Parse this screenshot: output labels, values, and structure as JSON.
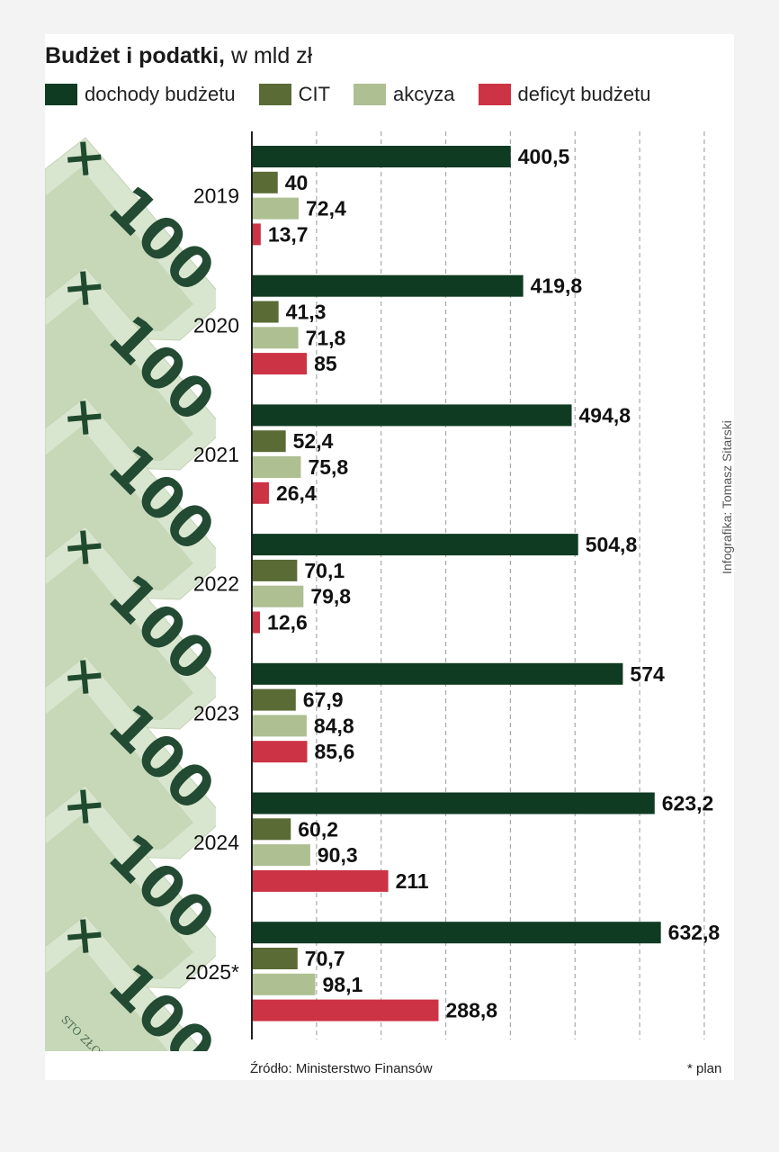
{
  "title": "Budżet i podatki,",
  "subtitle": "w mld zł",
  "legend": [
    {
      "label": "dochody budżetu",
      "color": "#0e3b22"
    },
    {
      "label": "CIT",
      "color": "#5a6b35"
    },
    {
      "label": "akcyza",
      "color": "#aebf92"
    },
    {
      "label": "deficyt budżetu",
      "color": "#cc3344"
    }
  ],
  "source": "Źródło: Ministerstwo Finansów",
  "note": "* plan",
  "credit": "Infografika: Tomasz Sitarski",
  "banknote_text": "100",
  "banknote_caption": "STO ZŁOTYCH",
  "chart_data": {
    "type": "bar",
    "orientation": "horizontal",
    "categories": [
      "2019",
      "2020",
      "2021",
      "2022",
      "2023",
      "2024",
      "2025*"
    ],
    "series": [
      {
        "name": "dochody budżetu",
        "color": "#0e3b22",
        "values": [
          400.5,
          419.8,
          494.8,
          504.8,
          574,
          623.2,
          632.8
        ],
        "labels": [
          "400,5",
          "419,8",
          "494,8",
          "504,8",
          "574",
          "623,2",
          "632,8"
        ]
      },
      {
        "name": "CIT",
        "color": "#5a6b35",
        "values": [
          40,
          41.3,
          52.4,
          70.1,
          67.9,
          60.2,
          70.7
        ],
        "labels": [
          "40",
          "41,3",
          "52,4",
          "70,1",
          "67,9",
          "60,2",
          "70,7"
        ]
      },
      {
        "name": "akcyza",
        "color": "#aebf92",
        "values": [
          72.4,
          71.8,
          75.8,
          79.8,
          84.8,
          90.3,
          98.1
        ],
        "labels": [
          "72,4",
          "71,8",
          "75,8",
          "79,8",
          "84,8",
          "90,3",
          "98,1"
        ]
      },
      {
        "name": "deficyt budżetu",
        "color": "#cc3344",
        "values": [
          13.7,
          85,
          26.4,
          12.6,
          85.6,
          211,
          288.8
        ],
        "labels": [
          "13,7",
          "85",
          "26,4",
          "12,6",
          "85,6",
          "211",
          "288,8"
        ]
      }
    ],
    "xlim": [
      0,
      700
    ],
    "grid": true,
    "legend_position": "top"
  }
}
